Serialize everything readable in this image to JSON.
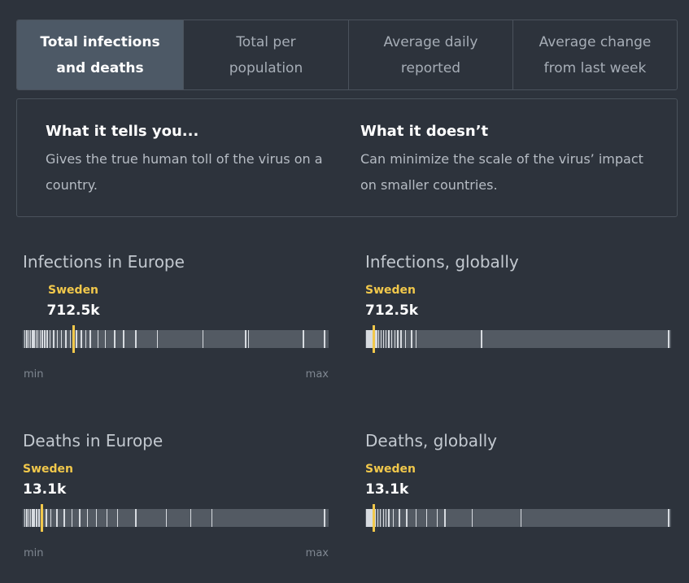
{
  "tabs": [
    {
      "label": "Total infections\nand deaths",
      "active": true
    },
    {
      "label": "Total per\npopulation",
      "active": false
    },
    {
      "label": "Average daily\nreported",
      "active": false
    },
    {
      "label": "Average change\nfrom last week",
      "active": false
    }
  ],
  "info": {
    "tells": {
      "heading": "What it tells you...",
      "text": "Gives the true human toll of the virus on a country."
    },
    "doesnt": {
      "heading": "What it doesn’t",
      "text": "Can minimize the scale of the virus’ impact on smaller countries."
    }
  },
  "panels": [
    {
      "title": "Infections in Europe",
      "label": "Sweden",
      "value": "712.5k",
      "position": 0.165,
      "ticks": [
        0.005,
        0.012,
        0.018,
        0.024,
        0.03,
        0.036,
        0.042,
        0.048,
        0.055,
        0.062,
        0.07,
        0.078,
        0.088,
        0.1,
        0.112,
        0.125,
        0.14,
        0.155,
        0.175,
        0.19,
        0.205,
        0.22,
        0.245,
        0.27,
        0.3,
        0.33,
        0.37,
        0.44,
        0.59,
        0.73,
        0.74,
        0.92,
        0.99
      ],
      "min_label": "min",
      "max_label": "max"
    },
    {
      "title": "Infections, globally",
      "label": "Sweden",
      "value": "712.5k",
      "position": 0.026,
      "ticks": [
        0.004,
        0.008,
        0.012,
        0.016,
        0.02,
        0.03,
        0.036,
        0.042,
        0.05,
        0.058,
        0.066,
        0.075,
        0.085,
        0.095,
        0.105,
        0.115,
        0.13,
        0.15,
        0.165,
        0.38,
        0.995
      ],
      "min_label": "",
      "max_label": ""
    },
    {
      "title": "Deaths in Europe",
      "label": "Sweden",
      "value": "13.1k",
      "position": 0.062,
      "ticks": [
        0.005,
        0.012,
        0.018,
        0.024,
        0.03,
        0.036,
        0.044,
        0.052,
        0.075,
        0.09,
        0.11,
        0.135,
        0.16,
        0.185,
        0.21,
        0.24,
        0.275,
        0.31,
        0.37,
        0.47,
        0.55,
        0.62,
        0.99
      ],
      "min_label": "min",
      "max_label": "max"
    },
    {
      "title": "Deaths, globally",
      "label": "Sweden",
      "value": "13.1k",
      "position": 0.026,
      "ticks": [
        0.004,
        0.008,
        0.012,
        0.016,
        0.02,
        0.032,
        0.04,
        0.048,
        0.058,
        0.066,
        0.076,
        0.09,
        0.11,
        0.135,
        0.165,
        0.2,
        0.235,
        0.26,
        0.35,
        0.51,
        0.995
      ],
      "min_label": "",
      "max_label": ""
    }
  ]
}
